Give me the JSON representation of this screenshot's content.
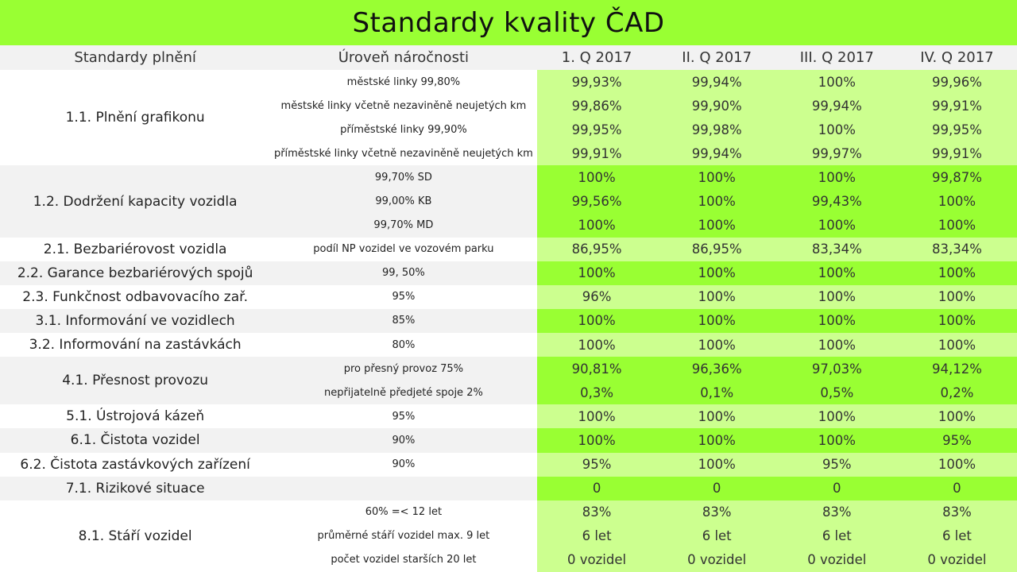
{
  "title": "Standardy kvality ČAD",
  "headers": [
    "Standardy plnění",
    "Úroveň náročnosti",
    "1. Q 2017",
    "II. Q 2017",
    "III. Q 2017",
    "IV. Q 2017"
  ],
  "colors": {
    "header_green": "#99ff33",
    "light_green": "#ccff8f",
    "bright_green": "#99ff33",
    "gray_band": "#f2f2f2"
  },
  "groups": [
    {
      "standard": "1.1. Plnění grafikonu",
      "band": "w",
      "fill": "light",
      "rows": [
        {
          "level": "městské linky 99,80%",
          "values": [
            "99,93%",
            "99,94%",
            "100%",
            "99,96%"
          ]
        },
        {
          "level": "městské linky včetně nezaviněně neujetých km",
          "values": [
            "99,86%",
            "99,90%",
            "99,94%",
            "99,91%"
          ]
        },
        {
          "level": "příměstské linky 99,90%",
          "values": [
            "99,95%",
            "99,98%",
            "100%",
            "99,95%"
          ]
        },
        {
          "level": "příměstské linky včetně nezaviněně neujetých km",
          "values": [
            "99,91%",
            "99,94%",
            "99,97%",
            "99,91%"
          ]
        }
      ]
    },
    {
      "standard": "1.2. Dodržení kapacity vozidla",
      "band": "g",
      "fill": "bright",
      "rows": [
        {
          "level": "99,70% SD",
          "values": [
            "100%",
            "100%",
            "100%",
            "99,87%"
          ]
        },
        {
          "level": "99,00% KB",
          "values": [
            "99,56%",
            "100%",
            "99,43%",
            "100%"
          ]
        },
        {
          "level": "99,70% MD",
          "values": [
            "100%",
            "100%",
            "100%",
            "100%"
          ]
        }
      ]
    },
    {
      "standard": "2.1. Bezbariérovost vozidla",
      "band": "w",
      "fill": "light",
      "rows": [
        {
          "level": "podíl NP vozidel ve vozovém parku",
          "values": [
            "86,95%",
            "86,95%",
            "83,34%",
            "83,34%"
          ]
        }
      ]
    },
    {
      "standard": "2.2. Garance bezbariérových spojů",
      "band": "g",
      "fill": "bright",
      "rows": [
        {
          "level": "99, 50%",
          "values": [
            "100%",
            "100%",
            "100%",
            "100%"
          ]
        }
      ]
    },
    {
      "standard": "2.3. Funkčnost odbavovacího zař.",
      "band": "w",
      "fill": "light",
      "rows": [
        {
          "level": "95%",
          "values": [
            "96%",
            "100%",
            "100%",
            "100%"
          ]
        }
      ]
    },
    {
      "standard": "3.1. Informování ve vozidlech",
      "band": "g",
      "fill": "bright",
      "rows": [
        {
          "level": "85%",
          "values": [
            "100%",
            "100%",
            "100%",
            "100%"
          ]
        }
      ]
    },
    {
      "standard": "3.2. Informování na zastávkách",
      "band": "w",
      "fill": "light",
      "rows": [
        {
          "level": "80%",
          "values": [
            "100%",
            "100%",
            "100%",
            "100%"
          ]
        }
      ]
    },
    {
      "standard": "4.1. Přesnost provozu",
      "band": "g",
      "fill": "bright",
      "rows": [
        {
          "level": "pro přesný provoz 75%",
          "values": [
            "90,81%",
            "96,36%",
            "97,03%",
            "94,12%"
          ]
        },
        {
          "level": "nepřijatelně předjeté spoje 2%",
          "values": [
            "0,3%",
            "0,1%",
            "0,5%",
            "0,2%"
          ]
        }
      ]
    },
    {
      "standard": "5.1.  Ústrojová kázeň",
      "band": "w",
      "fill": "light",
      "rows": [
        {
          "level": "95%",
          "values": [
            "100%",
            "100%",
            "100%",
            "100%"
          ]
        }
      ]
    },
    {
      "standard": "6.1. Čistota vozidel",
      "band": "g",
      "fill": "bright",
      "rows": [
        {
          "level": "90%",
          "values": [
            "100%",
            "100%",
            "100%",
            "95%"
          ]
        }
      ]
    },
    {
      "standard": "6.2. Čistota zastávkových zařízení",
      "band": "w",
      "fill": "light",
      "rows": [
        {
          "level": "90%",
          "values": [
            "95%",
            "100%",
            "95%",
            "100%"
          ]
        }
      ]
    },
    {
      "standard": "7.1. Rizikové situace",
      "band": "g",
      "fill": "bright",
      "rows": [
        {
          "level": "",
          "values": [
            "0",
            "0",
            "0",
            "0"
          ]
        }
      ]
    },
    {
      "standard": "8.1. Stáří vozidel",
      "band": "w",
      "fill": "light",
      "rows": [
        {
          "level": "60% =< 12 let",
          "values": [
            "83%",
            "83%",
            "83%",
            "83%"
          ]
        },
        {
          "level": "průměrné stáří vozidel max. 9 let",
          "values": [
            "6 let",
            "6 let",
            "6 let",
            "6 let"
          ]
        },
        {
          "level": "počet vozidel starších 20 let",
          "values": [
            "0 vozidel",
            "0 vozidel",
            "0 vozidel",
            "0 vozidel"
          ]
        }
      ]
    }
  ]
}
